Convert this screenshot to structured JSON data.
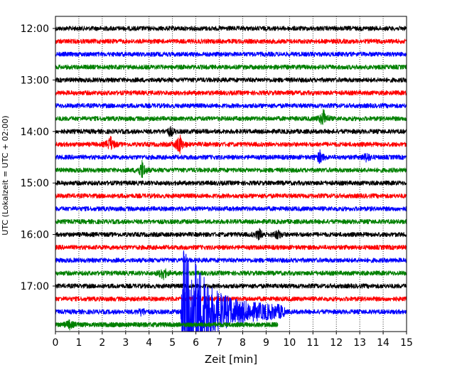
{
  "chart_data": {
    "type": "line",
    "title": "",
    "xlabel": "Zeit  [min]",
    "ylabel": "UTC (Lokalzeit = UTC + 02:00)",
    "xlim": [
      0,
      15
    ],
    "x_ticks": [
      0,
      1,
      2,
      3,
      4,
      5,
      6,
      7,
      8,
      9,
      10,
      11,
      12,
      13,
      14,
      15
    ],
    "x_tick_labels": [
      "0",
      "1",
      "2",
      "3",
      "4",
      "5",
      "6",
      "7",
      "8",
      "9",
      "10",
      "11",
      "12",
      "13",
      "14",
      "15"
    ],
    "y_tick_labels": [
      "12:00",
      "13:00",
      "14:00",
      "15:00",
      "16:00",
      "17:00"
    ],
    "grid": "vertical dotted lines at each minute",
    "trace_interval_minutes": 15,
    "trace_color_cycle": [
      "#000000",
      "#ff0000",
      "#0000ff",
      "#008000"
    ],
    "traces": [
      {
        "start": "12:00",
        "color": "#000000",
        "events": []
      },
      {
        "start": "12:15",
        "color": "#ff0000",
        "events": []
      },
      {
        "start": "12:30",
        "color": "#0000ff",
        "events": []
      },
      {
        "start": "12:45",
        "color": "#008000",
        "events": []
      },
      {
        "start": "13:00",
        "color": "#000000",
        "events": []
      },
      {
        "start": "13:15",
        "color": "#ff0000",
        "events": []
      },
      {
        "start": "13:30",
        "color": "#0000ff",
        "events": []
      },
      {
        "start": "13:45",
        "color": "#008000",
        "events": [
          {
            "t": 11.45,
            "amp": 1.3
          }
        ]
      },
      {
        "start": "14:00",
        "color": "#000000",
        "events": [
          {
            "t": 4.9,
            "amp": 0.6
          }
        ]
      },
      {
        "start": "14:15",
        "color": "#ff0000",
        "events": [
          {
            "t": 2.35,
            "amp": 1.1
          },
          {
            "t": 5.3,
            "amp": 1.4
          }
        ]
      },
      {
        "start": "14:30",
        "color": "#0000ff",
        "events": [
          {
            "t": 11.3,
            "amp": 0.8
          },
          {
            "t": 13.3,
            "amp": 0.6
          }
        ]
      },
      {
        "start": "14:45",
        "color": "#008000",
        "events": [
          {
            "t": 3.7,
            "amp": 1.3
          }
        ]
      },
      {
        "start": "15:00",
        "color": "#000000",
        "events": []
      },
      {
        "start": "15:15",
        "color": "#ff0000",
        "events": []
      },
      {
        "start": "15:30",
        "color": "#0000ff",
        "events": []
      },
      {
        "start": "15:45",
        "color": "#008000",
        "events": []
      },
      {
        "start": "16:00",
        "color": "#000000",
        "events": [
          {
            "t": 8.7,
            "amp": 0.7
          },
          {
            "t": 9.5,
            "amp": 0.6
          }
        ]
      },
      {
        "start": "16:15",
        "color": "#ff0000",
        "events": []
      },
      {
        "start": "16:30",
        "color": "#0000ff",
        "events": []
      },
      {
        "start": "16:45",
        "color": "#008000",
        "events": [
          {
            "t": 4.6,
            "amp": 0.9
          }
        ]
      },
      {
        "start": "17:00",
        "color": "#000000",
        "events": []
      },
      {
        "start": "17:15",
        "color": "#ff0000",
        "events": []
      },
      {
        "start": "17:30",
        "color": "#0000ff",
        "earthquake": {
          "onset": 5.35,
          "coda_end": 9.8
        },
        "events": [
          {
            "t": 3.7,
            "amp": 0.5
          }
        ]
      },
      {
        "start": "17:45",
        "color": "#008000",
        "end": 9.5,
        "events": [
          {
            "t": 0.6,
            "amp": 0.5
          }
        ]
      }
    ]
  }
}
